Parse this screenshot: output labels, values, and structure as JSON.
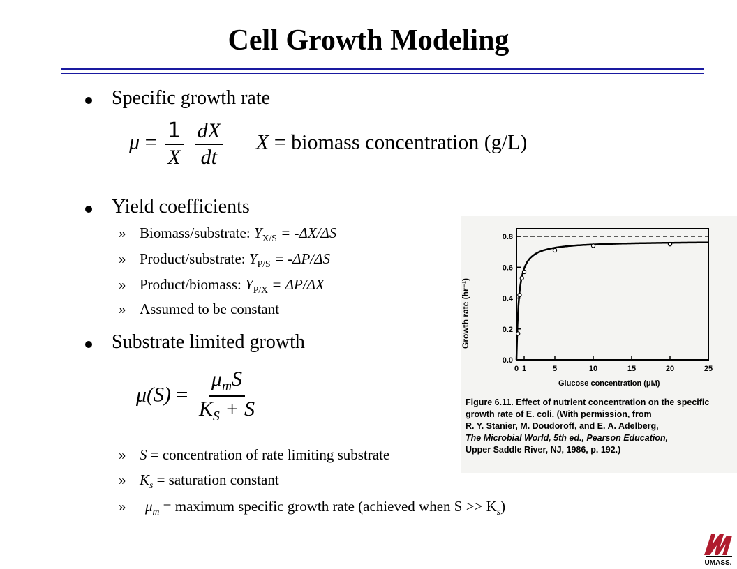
{
  "title": "Cell Growth Modeling",
  "bullets": {
    "b1": "Specific  growth  rate",
    "b2": "Yield coefficients",
    "b3": "Substrate  limited  growth"
  },
  "eq1": {
    "mu": "μ",
    "eq": "=",
    "one": "1",
    "x": "X",
    "dx": "dX",
    "dt": "dt",
    "def_var": "X",
    "def_text": " = biomass concentration (g/L)"
  },
  "yield": {
    "marker": "»",
    "items": [
      {
        "label": "Biomass/substrate:  ",
        "sym": "Y",
        "sub": "X/S",
        "expr": " = -ΔX/ΔS"
      },
      {
        "label": "Product/substrate:  ",
        "sym": "Y",
        "sub": "P/S",
        "expr": " = -ΔP/ΔS"
      },
      {
        "label": "Product/biomass: ",
        "sym": "Y",
        "sub": "P/X",
        "expr": " = ΔP/ΔX"
      }
    ],
    "note": "Assumed to be constant"
  },
  "eq2": {
    "lhs": "μ(S)",
    "eq": "=",
    "num_mu": "μ",
    "num_sub": "m",
    "num_s": "S",
    "den_k": "K",
    "den_sub": "S",
    "den_rest": " + S"
  },
  "defs": [
    {
      "sym": "S",
      "sub": "",
      "text": " = concentration of rate limiting substrate"
    },
    {
      "sym": "K",
      "sub": "s",
      "text": " = saturation constant"
    },
    {
      "sym": "μ",
      "sub": "m",
      "text": " = maximum specific growth rate (achieved when S >> K",
      "tail_sub": "s",
      "tail": ")"
    }
  ],
  "figure": {
    "ylabel": "Growth rate (hr⁻¹)",
    "xlabel": "Glucose concentration (μM)",
    "caption_lines": [
      "Figure 6.11.    Effect of nutrient concentration on the specific",
      "                         growth rate of E. coli. (With permission,  from",
      "                         R. Y. Stanier, M. Doudoroff, and E. A. Adelberg,",
      "                         The Microbial World, 5th ed., Pearson Education,",
      "                         Upper Saddle River, NJ, 1986, p. 192.)"
    ],
    "chart_data": {
      "type": "line",
      "xlabel": "Glucose concentration (μM)",
      "ylabel": "Growth rate (hr⁻¹)",
      "xlim": [
        0,
        25
      ],
      "ylim": [
        0,
        0.85
      ],
      "x_ticks": [
        0,
        1,
        5,
        10,
        15,
        20,
        25
      ],
      "y_ticks": [
        0.0,
        0.2,
        0.4,
        0.6,
        0.8
      ],
      "y_tick_labels": [
        "0.0",
        "0.2",
        "0.4",
        "0.6",
        "0.8"
      ],
      "asymptote": 0.8,
      "points_x": [
        0.2,
        0.4,
        0.7,
        1,
        5,
        10,
        20
      ],
      "points_y": [
        0.17,
        0.42,
        0.53,
        0.57,
        0.71,
        0.74,
        0.75
      ],
      "curve_mu_max": 0.77,
      "curve_ks": 0.3
    }
  },
  "logo": {
    "text": "UMASS."
  },
  "colors": {
    "rule": "#1a1aa0",
    "logo_red": "#b01c2e"
  }
}
